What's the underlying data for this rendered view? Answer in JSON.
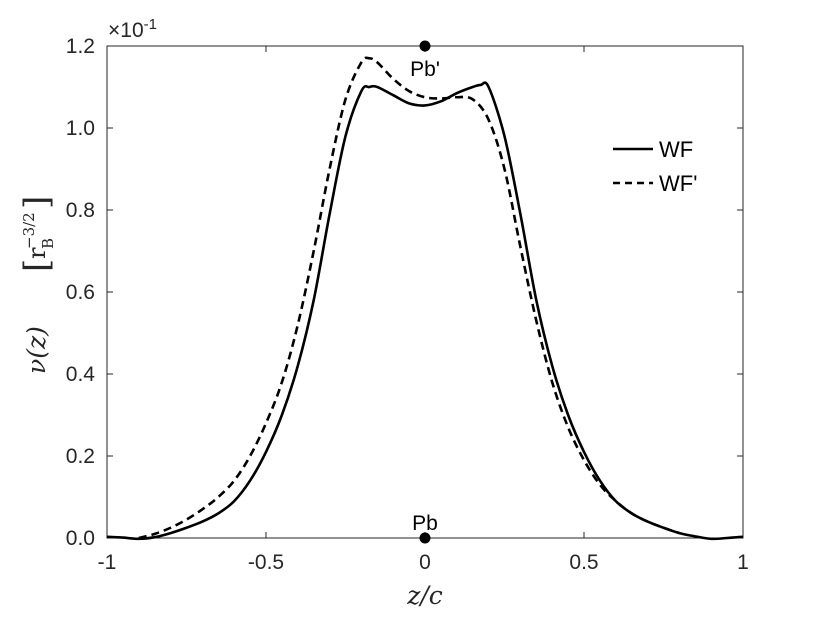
{
  "chart_data": {
    "type": "line",
    "xlabel": "z/c",
    "ylabel": "ν(z)  [r_B^−3/2]",
    "ylabel_main": "ν(z)",
    "ylabel_unit_base": "r",
    "ylabel_unit_sub": "B",
    "ylabel_unit_sup": "−3/2",
    "y_multiplier": "×10",
    "y_multiplier_exp": "-1",
    "xlim": [
      -1,
      1
    ],
    "ylim": [
      0,
      1.2
    ],
    "xticks": [
      -1,
      -0.5,
      0,
      0.5,
      1
    ],
    "xtick_labels": [
      "-1",
      "-0.5",
      "0",
      "0.5",
      "1"
    ],
    "yticks": [
      0,
      0.2,
      0.4,
      0.6,
      0.8,
      1.0,
      1.2
    ],
    "ytick_labels": [
      "0.0",
      "0.2",
      "0.4",
      "0.6",
      "0.8",
      "1.0",
      "1.2"
    ],
    "legend_position": "top-right",
    "grid": false,
    "series": [
      {
        "name": "WF",
        "style": "solid",
        "x": [
          -1.0,
          -0.95,
          -0.9,
          -0.85,
          -0.8,
          -0.75,
          -0.7,
          -0.65,
          -0.6,
          -0.55,
          -0.5,
          -0.45,
          -0.4,
          -0.35,
          -0.3,
          -0.25,
          -0.2,
          -0.175,
          -0.15,
          -0.1,
          -0.05,
          0.0,
          0.05,
          0.1,
          0.15,
          0.175,
          0.2,
          0.25,
          0.3,
          0.35,
          0.4,
          0.45,
          0.5,
          0.55,
          0.6,
          0.65,
          0.7,
          0.75,
          0.8,
          0.85,
          0.9,
          0.95,
          1.0
        ],
        "y": [
          0.003,
          0.001,
          -0.002,
          0.002,
          0.012,
          0.025,
          0.04,
          0.06,
          0.09,
          0.14,
          0.21,
          0.3,
          0.42,
          0.58,
          0.79,
          0.98,
          1.09,
          1.1,
          1.1,
          1.08,
          1.06,
          1.055,
          1.065,
          1.085,
          1.1,
          1.105,
          1.1,
          0.98,
          0.79,
          0.58,
          0.42,
          0.3,
          0.21,
          0.14,
          0.09,
          0.06,
          0.04,
          0.025,
          0.012,
          0.004,
          -0.002,
          0.0,
          0.003
        ]
      },
      {
        "name": "WF'",
        "style": "dashed",
        "x": [
          -0.9,
          -0.85,
          -0.8,
          -0.75,
          -0.7,
          -0.65,
          -0.6,
          -0.55,
          -0.5,
          -0.45,
          -0.4,
          -0.35,
          -0.3,
          -0.25,
          -0.2,
          -0.175,
          -0.15,
          -0.1,
          -0.05,
          0.0,
          0.05,
          0.1,
          0.15,
          0.2,
          0.25,
          0.3,
          0.35,
          0.4,
          0.45,
          0.5,
          0.55,
          0.6,
          0.65,
          0.7,
          0.75,
          0.8
        ],
        "y": [
          0.0,
          0.01,
          0.025,
          0.045,
          0.07,
          0.1,
          0.14,
          0.2,
          0.28,
          0.38,
          0.52,
          0.7,
          0.9,
          1.07,
          1.16,
          1.17,
          1.16,
          1.12,
          1.09,
          1.075,
          1.072,
          1.075,
          1.07,
          1.02,
          0.9,
          0.71,
          0.53,
          0.38,
          0.27,
          0.19,
          0.13,
          0.09,
          0.06,
          0.04,
          0.025,
          0.012
        ]
      }
    ],
    "markers": [
      {
        "label": "Pb'",
        "x": 0,
        "y": 1.2
      },
      {
        "label": "Pb",
        "x": 0,
        "y": 0.0
      }
    ]
  }
}
